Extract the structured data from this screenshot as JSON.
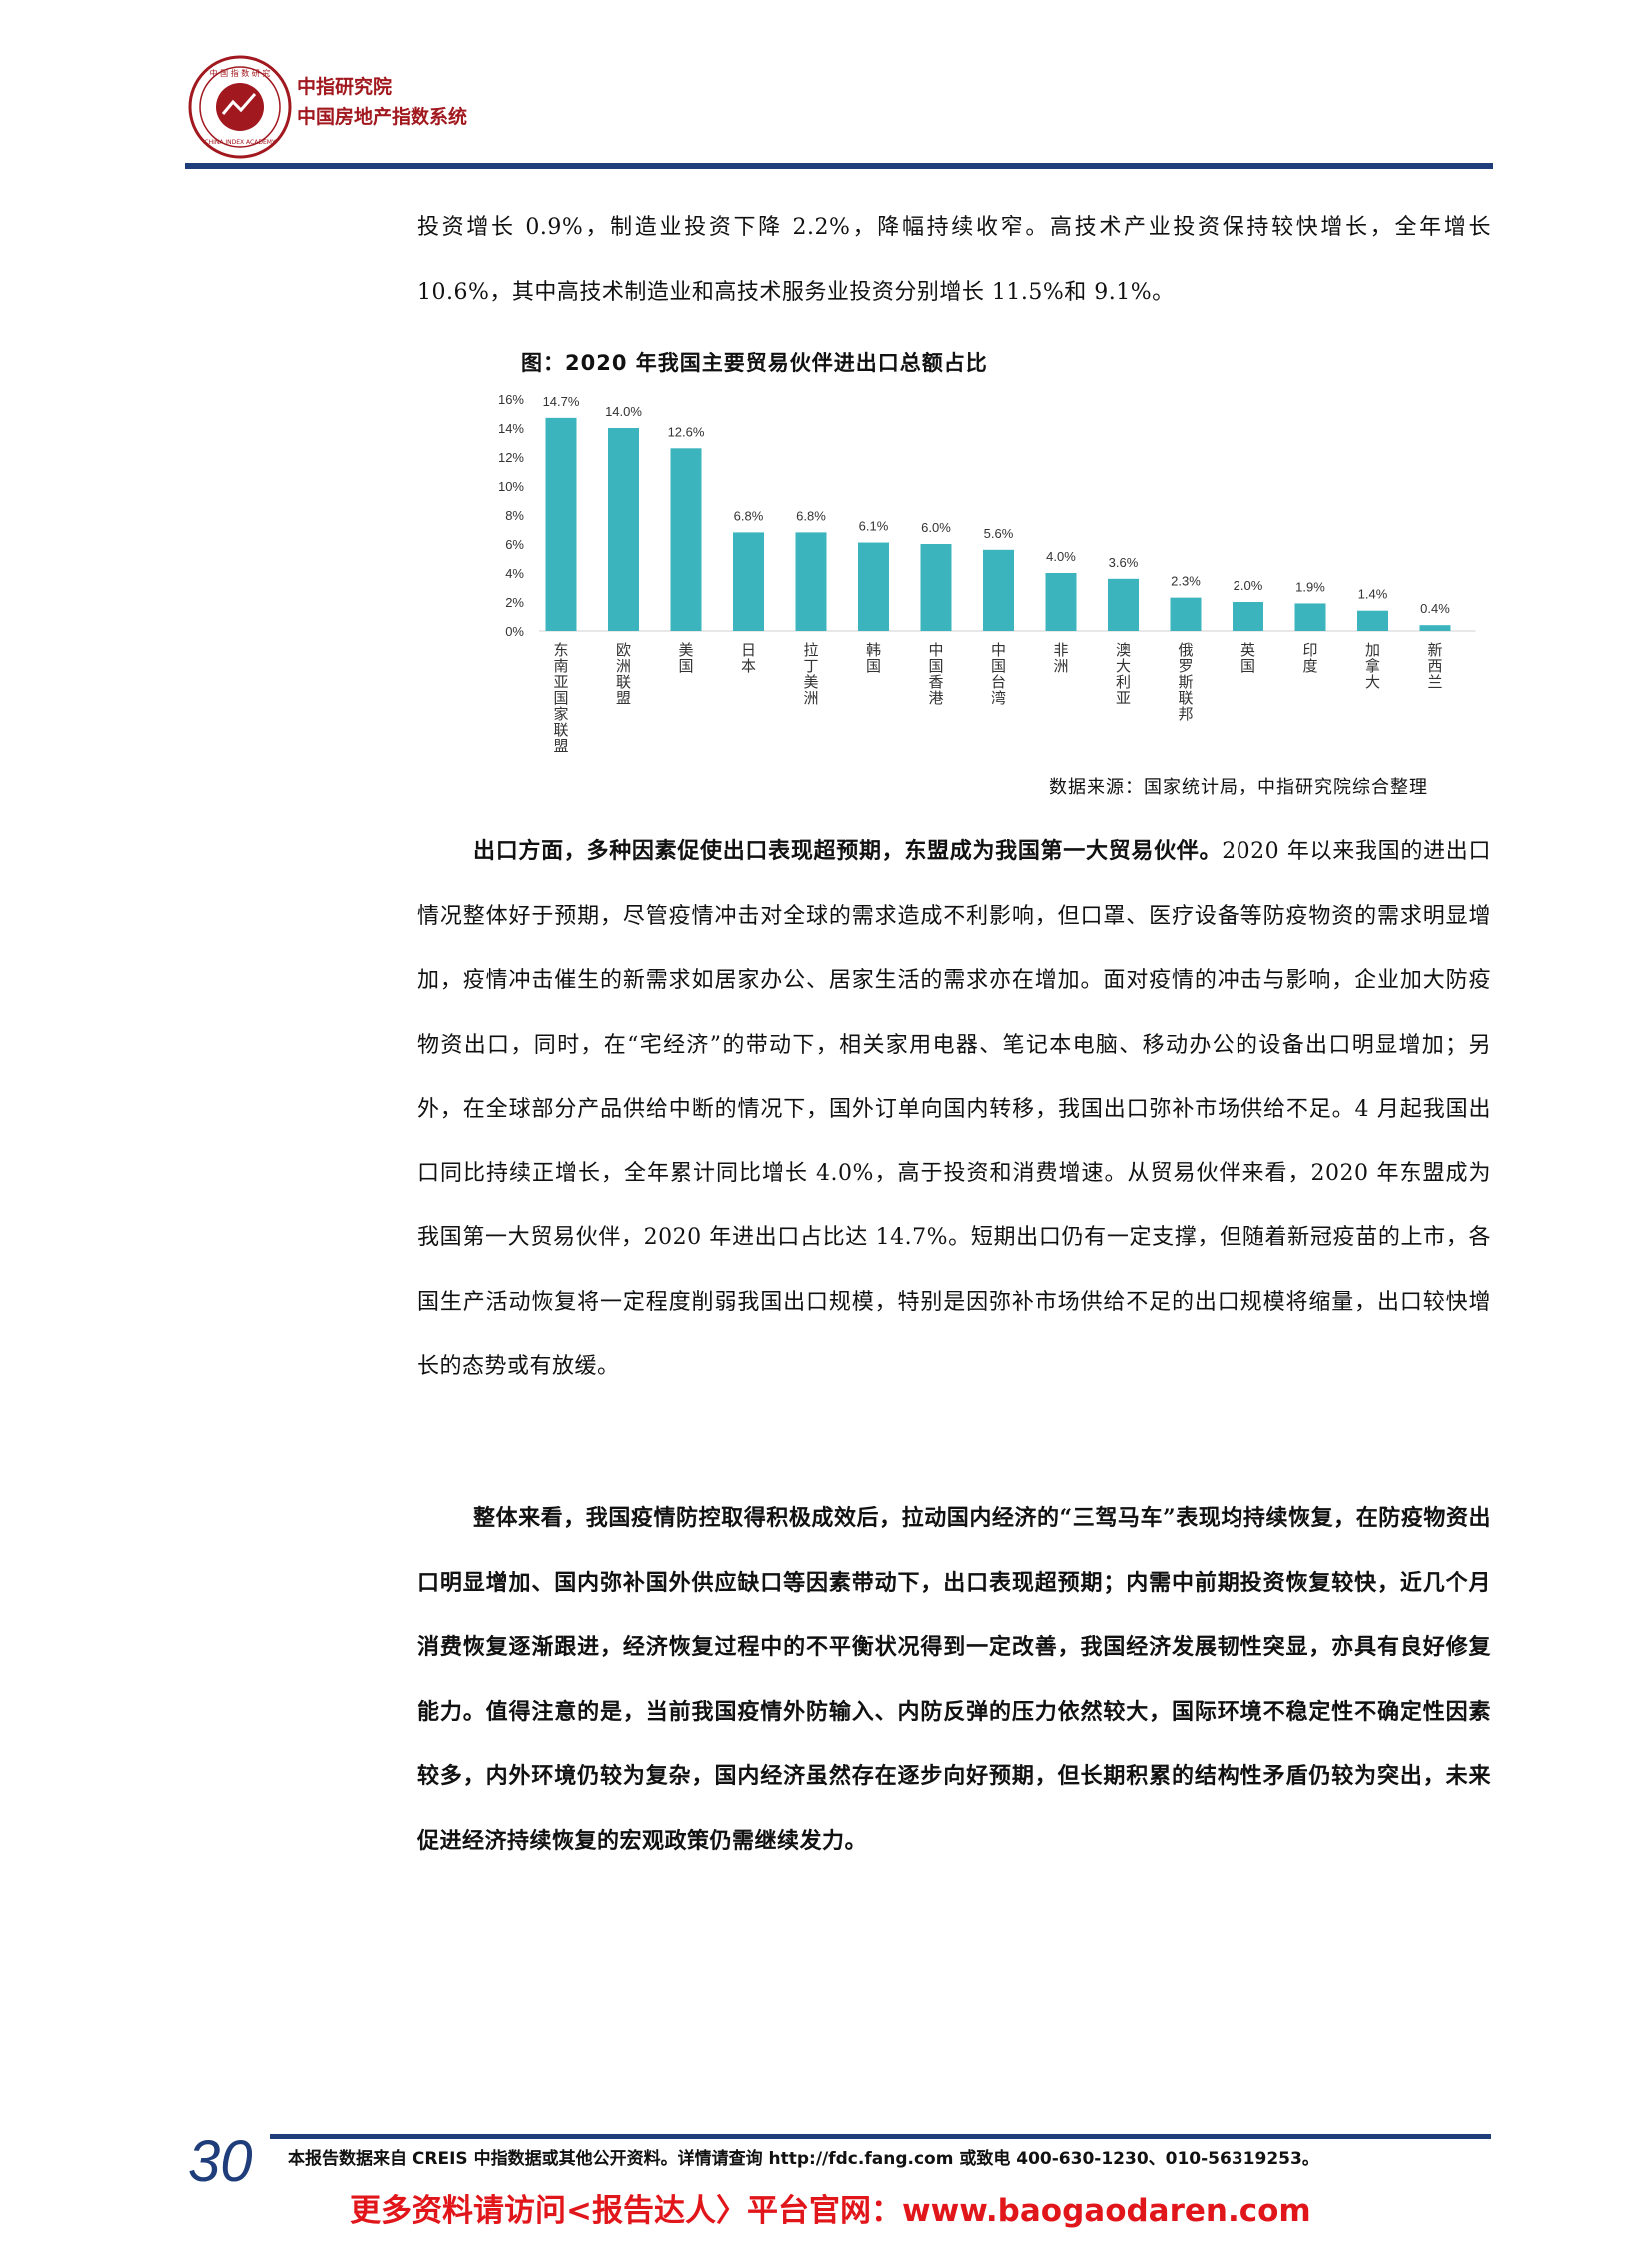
{
  "header": {
    "org_name": "中指研究院",
    "org_subtitle": "中国房地产指数系统"
  },
  "paragraphs": {
    "p1": "投资增长 0.9%，制造业投资下降 2.2%，降幅持续收窄。高技术产业投资保持较快增长，全年增长 10.6%，其中高技术制造业和高技术服务业投资分别增长 11.5%和 9.1%。",
    "p2_lead": "出口方面，多种因素促使出口表现超预期，东盟成为我国第一大贸易伙伴。",
    "p2_body": "2020 年以来我国的进出口情况整体好于预期，尽管疫情冲击对全球的需求造成不利影响，但口罩、医疗设备等防疫物资的需求明显增加，疫情冲击催生的新需求如居家办公、居家生活的需求亦在增加。面对疫情的冲击与影响，企业加大防疫物资出口，同时，在“宅经济”的带动下，相关家用电器、笔记本电脑、移动办公的设备出口明显增加；另外，在全球部分产品供给中断的情况下，国外订单向国内转移，我国出口弥补市场供给不足。4 月起我国出口同比持续正增长，全年累计同比增长 4.0%，高于投资和消费增速。从贸易伙伴来看，2020 年东盟成为我国第一大贸易伙伴，2020 年进出口占比达 14.7%。短期出口仍有一定支撑，但随着新冠疫苗的上市，各国生产活动恢复将一定程度削弱我国出口规模，特别是因弥补市场供给不足的出口规模将缩量，出口较快增长的态势或有放缓。",
    "p3": "整体来看，我国疫情防控取得积极成效后，拉动国内经济的“三驾马车”表现均持续恢复，在防疫物资出口明显增加、国内弥补国外供应缺口等因素带动下，出口表现超预期；内需中前期投资恢复较快，近几个月消费恢复逐渐跟进，经济恢复过程中的不平衡状况得到一定改善，我国经济发展韧性突显，亦具有良好修复能力。值得注意的是，当前我国疫情外防输入、内防反弹的压力依然较大，国际环境不稳定性不确定性因素较多，内外环境仍较为复杂，国内经济虽然存在逐步向好预期，但长期积累的结构性矛盾仍较为突出，未来促进经济持续恢复的宏观政策仍需继续发力。"
  },
  "chart_data": {
    "type": "bar",
    "title": "图：2020 年我国主要贸易伙伴进出口总额占比",
    "categories": [
      "东南亚国家联盟",
      "欧洲联盟",
      "美国",
      "日本",
      "拉丁美洲",
      "韩国",
      "中国香港",
      "中国台湾",
      "非洲",
      "澳大利亚",
      "俄罗斯联邦",
      "英国",
      "印度",
      "加拿大",
      "新西兰"
    ],
    "values": [
      14.7,
      14.0,
      12.6,
      6.8,
      6.8,
      6.1,
      6.0,
      5.6,
      4.0,
      3.6,
      2.3,
      2.0,
      1.9,
      1.4,
      0.4
    ],
    "data_labels": [
      "14.7%",
      "14.0%",
      "12.6%",
      "6.8%",
      "6.8%",
      "6.1%",
      "6.0%",
      "5.6%",
      "4.0%",
      "3.6%",
      "2.3%",
      "2.0%",
      "1.9%",
      "1.4%",
      "0.4%"
    ],
    "y_ticks": [
      "0%",
      "2%",
      "4%",
      "6%",
      "8%",
      "10%",
      "12%",
      "14%",
      "16%"
    ],
    "ylim": [
      0,
      16
    ],
    "bar_color": "#3bb4be",
    "grid": false,
    "legend": false
  },
  "source": "数据来源：国家统计局，中指研究院综合整理",
  "footer": {
    "page_number": "30",
    "note": "本报告数据来自 CREIS 中指数据或其他公开资料。详情请查询 http://fdc.fang.com 或致电 400-630-1230、010-56319253。",
    "promo": "更多资料请访问<报告达人〉平台官网：www.baogaodaren.com"
  }
}
